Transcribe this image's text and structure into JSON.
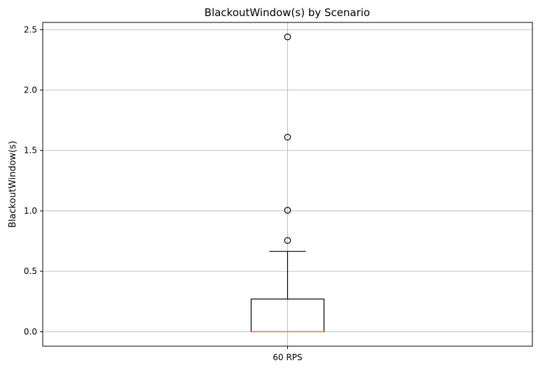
{
  "chart_data": {
    "type": "box",
    "title": "BlackoutWindow(s) by Scenario",
    "xlabel": "",
    "ylabel": "BlackoutWindow(s)",
    "categories": [
      "60 RPS"
    ],
    "ylim": [
      -0.12,
      2.56
    ],
    "yticks": [
      0.0,
      0.5,
      1.0,
      1.5,
      2.0,
      2.5
    ],
    "ytick_labels": [
      "0.0",
      "0.5",
      "1.0",
      "1.5",
      "2.0",
      "2.5"
    ],
    "grid": true,
    "boxes": [
      {
        "name": "60 RPS",
        "whisker_low": 0.0,
        "q1": 0.0,
        "median": 0.0,
        "q3": 0.27,
        "whisker_high": 0.665,
        "outliers": [
          0.755,
          1.005,
          1.61,
          2.44
        ]
      }
    ],
    "colors": {
      "box": "#000000",
      "median": "#e8804a",
      "grid": "#b0b0b0",
      "outlier_stroke": "#000000"
    }
  }
}
